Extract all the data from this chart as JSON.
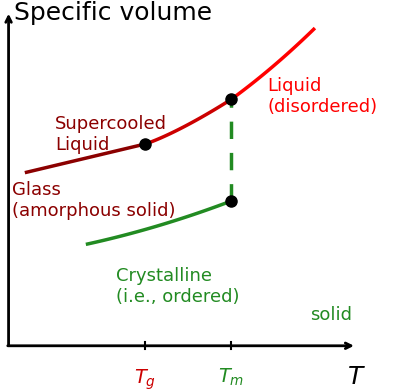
{
  "title": "Specific volume",
  "xlabel": "T",
  "background_color": "#ffffff",
  "Tg": 0.38,
  "Tm": 0.62,
  "glass_color": "#8B0000",
  "supercooled_color": "#CC0000",
  "liquid_color": "#FF0000",
  "crystalline_color": "#228B22",
  "dashed_color": "#228B22",
  "labels": {
    "liquid": "Liquid\n(disordered)",
    "supercooled": "Supercooled\nLiquid",
    "glass": "Glass\n(amorphous solid)",
    "crystalline": "Crystalline\n(i.e., ordered)",
    "solid": "solid"
  },
  "label_colors": {
    "liquid": "#FF0000",
    "supercooled": "#8B0000",
    "glass": "#8B0000",
    "crystalline": "#228B22",
    "solid": "#228B22"
  },
  "label_fontsizes": {
    "liquid": 13,
    "supercooled": 13,
    "glass": 13,
    "crystalline": 13,
    "solid": 13
  },
  "title_fontsize": 18,
  "axis_label_fontsize": 18
}
